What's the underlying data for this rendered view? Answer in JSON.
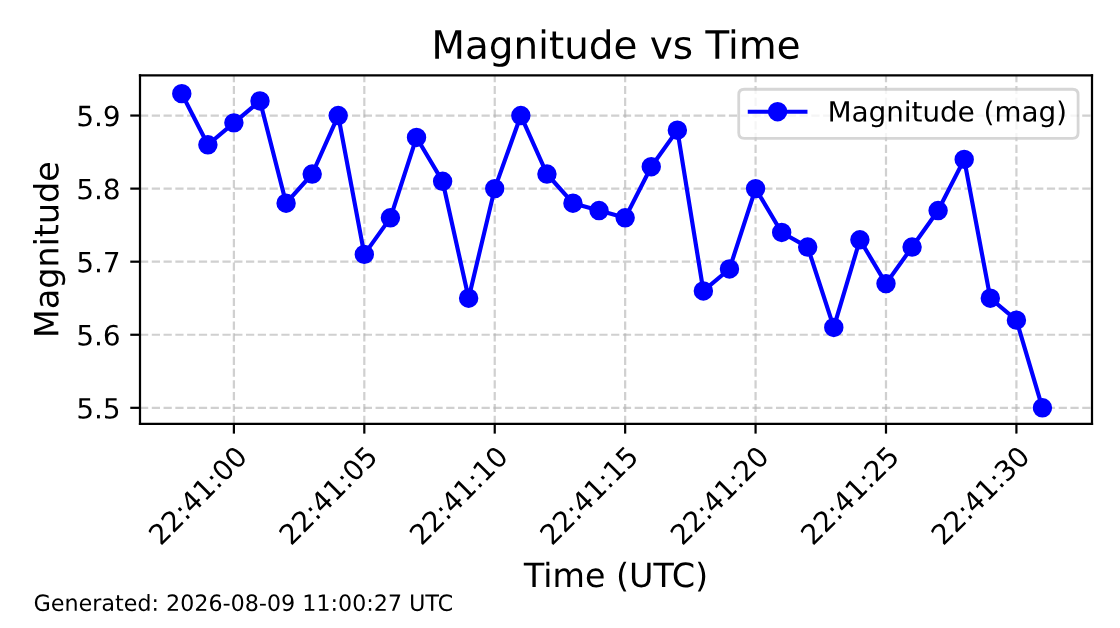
{
  "chart_data": {
    "type": "line",
    "title": "Magnitude vs Time",
    "xlabel": "Time (UTC)",
    "ylabel": "Magnitude",
    "x": [
      22.682778,
      22.683056,
      22.683333,
      22.683611,
      22.683889,
      22.684167,
      22.684444,
      22.684722,
      22.685,
      22.685278,
      22.685556,
      22.685833,
      22.686111,
      22.686389,
      22.686667,
      22.686944,
      22.687222,
      22.6875,
      22.687778,
      22.688056,
      22.688333,
      22.688611,
      22.688889,
      22.689167,
      22.689444,
      22.689722,
      22.69,
      22.690278,
      22.690556,
      22.690833,
      22.691111,
      22.691389,
      22.691667,
      22.691944
    ],
    "series": [
      {
        "name": "Magnitude (mag)",
        "color": "#0000ff",
        "values": [
          5.93,
          5.86,
          5.89,
          5.92,
          5.78,
          5.82,
          5.9,
          5.71,
          5.76,
          5.87,
          5.81,
          5.65,
          5.8,
          5.9,
          5.82,
          5.78,
          5.77,
          5.76,
          5.83,
          5.88,
          5.66,
          5.69,
          5.8,
          5.74,
          5.72,
          5.61,
          5.73,
          5.67,
          5.72,
          5.77,
          5.84,
          5.65,
          5.62,
          5.5
        ]
      }
    ],
    "xlim": [
      22.682333,
      22.692472
    ],
    "ylim": [
      5.478,
      5.955
    ],
    "xticks": [
      {
        "value": 22.683333,
        "label": "22:41:00"
      },
      {
        "value": 22.684722,
        "label": "22:41:05"
      },
      {
        "value": 22.686111,
        "label": "22:41:10"
      },
      {
        "value": 22.6875,
        "label": "22:41:15"
      },
      {
        "value": 22.688889,
        "label": "22:41:20"
      },
      {
        "value": 22.690278,
        "label": "22:41:25"
      },
      {
        "value": 22.691667,
        "label": "22:41:30"
      }
    ],
    "yticks": [
      5.5,
      5.6,
      5.7,
      5.8,
      5.9
    ],
    "grid": true,
    "legend": "top right",
    "marker": "circle",
    "line_style": "solid",
    "annotations": [
      "Generated: 2026-08-09 11:00:27 UTC"
    ]
  }
}
